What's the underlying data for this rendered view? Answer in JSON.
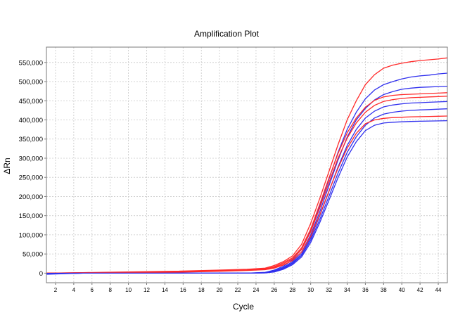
{
  "chart_data": {
    "type": "line",
    "title": "Amplification Plot",
    "xlabel": "Cycle",
    "ylabel": "ΔRn",
    "xlim": [
      1,
      45
    ],
    "ylim": [
      -25000,
      590000
    ],
    "xticks": [
      2,
      4,
      6,
      8,
      10,
      12,
      14,
      16,
      18,
      20,
      22,
      24,
      26,
      28,
      30,
      32,
      34,
      36,
      38,
      40,
      42,
      44
    ],
    "xtick_labels": [
      "2",
      "4",
      "6",
      "8",
      "10",
      "12",
      "14",
      "16",
      "18",
      "20",
      "22",
      "24",
      "26",
      "28",
      "30",
      "32",
      "34",
      "36",
      "38",
      "40",
      "42",
      "44"
    ],
    "yticks": [
      0,
      50000,
      100000,
      150000,
      200000,
      250000,
      300000,
      350000,
      400000,
      450000,
      500000,
      550000
    ],
    "ytick_labels": [
      "0",
      "50,000",
      "100,000",
      "150,000",
      "200,000",
      "250,000",
      "300,000",
      "350,000",
      "400,000",
      "450,000",
      "500,000",
      "550,000"
    ],
    "grid": true,
    "colors": {
      "red": "#ff2a2a",
      "blue": "#3030ee",
      "frame": "#7a7a7a",
      "grid": "#c8c8c8"
    },
    "x": [
      1,
      5,
      10,
      15,
      20,
      23,
      25,
      26,
      27,
      28,
      29,
      30,
      31,
      32,
      33,
      34,
      35,
      36,
      37,
      38,
      39,
      40,
      41,
      42,
      43,
      44,
      45
    ],
    "series": [
      {
        "color": "red",
        "values": [
          0,
          1500,
          3000,
          5000,
          8000,
          10000,
          13000,
          20000,
          30000,
          45000,
          75000,
          130000,
          195000,
          265000,
          335000,
          400000,
          450000,
          492000,
          518000,
          535000,
          543000,
          548000,
          552000,
          555000,
          557000,
          559000,
          562000
        ]
      },
      {
        "color": "blue",
        "values": [
          -3000,
          0,
          0,
          0,
          0,
          0,
          2000,
          8000,
          18000,
          35000,
          62000,
          110000,
          175000,
          245000,
          315000,
          375000,
          420000,
          455000,
          478000,
          492000,
          500000,
          507000,
          512000,
          515000,
          517000,
          520000,
          522000
        ]
      },
      {
        "color": "blue",
        "values": [
          -2000,
          0,
          0,
          0,
          0,
          0,
          1000,
          6000,
          15000,
          30000,
          55000,
          100000,
          160000,
          228000,
          295000,
          355000,
          400000,
          430000,
          452000,
          466000,
          474000,
          480000,
          483000,
          485000,
          486000,
          487000,
          488000
        ]
      },
      {
        "color": "red",
        "values": [
          0,
          1000,
          2000,
          4000,
          7000,
          9000,
          11000,
          17000,
          27000,
          40000,
          66000,
          115000,
          180000,
          248000,
          312000,
          366000,
          405000,
          433000,
          451000,
          460000,
          464000,
          466000,
          467000,
          468000,
          469000,
          470000,
          471000
        ]
      },
      {
        "color": "red",
        "values": [
          0,
          800,
          1600,
          3200,
          6000,
          8000,
          10000,
          15000,
          24000,
          37000,
          62000,
          108000,
          170000,
          236000,
          300000,
          352000,
          392000,
          420000,
          438000,
          448000,
          453000,
          456000,
          458000,
          459000,
          460000,
          461000,
          462000
        ]
      },
      {
        "color": "blue",
        "values": [
          -1500,
          0,
          0,
          0,
          0,
          0,
          1000,
          5000,
          13000,
          27000,
          50000,
          92000,
          150000,
          213000,
          277000,
          333000,
          375000,
          405000,
          423000,
          434000,
          439000,
          442000,
          444000,
          445000,
          446000,
          447000,
          448000
        ]
      },
      {
        "color": "blue",
        "values": [
          -1000,
          0,
          0,
          0,
          0,
          0,
          800,
          4000,
          12000,
          25000,
          46000,
          86000,
          140000,
          200000,
          261000,
          315000,
          356000,
          386000,
          405000,
          415000,
          420000,
          423000,
          425000,
          426000,
          427000,
          428000,
          429000
        ]
      },
      {
        "color": "red",
        "values": [
          0,
          600,
          1200,
          2400,
          5000,
          7000,
          9000,
          13000,
          21000,
          33000,
          55000,
          96000,
          152000,
          214000,
          274000,
          326000,
          365000,
          390000,
          400000,
          404000,
          406000,
          407000,
          408000,
          408500,
          409000,
          409500,
          410000
        ]
      },
      {
        "color": "blue",
        "values": [
          -500,
          0,
          0,
          0,
          0,
          0,
          600,
          3000,
          10000,
          22000,
          42000,
          80000,
          132000,
          190000,
          249000,
          303000,
          343000,
          372000,
          386000,
          392000,
          394000,
          395000,
          396000,
          396500,
          397000,
          397500,
          398000
        ]
      }
    ]
  }
}
